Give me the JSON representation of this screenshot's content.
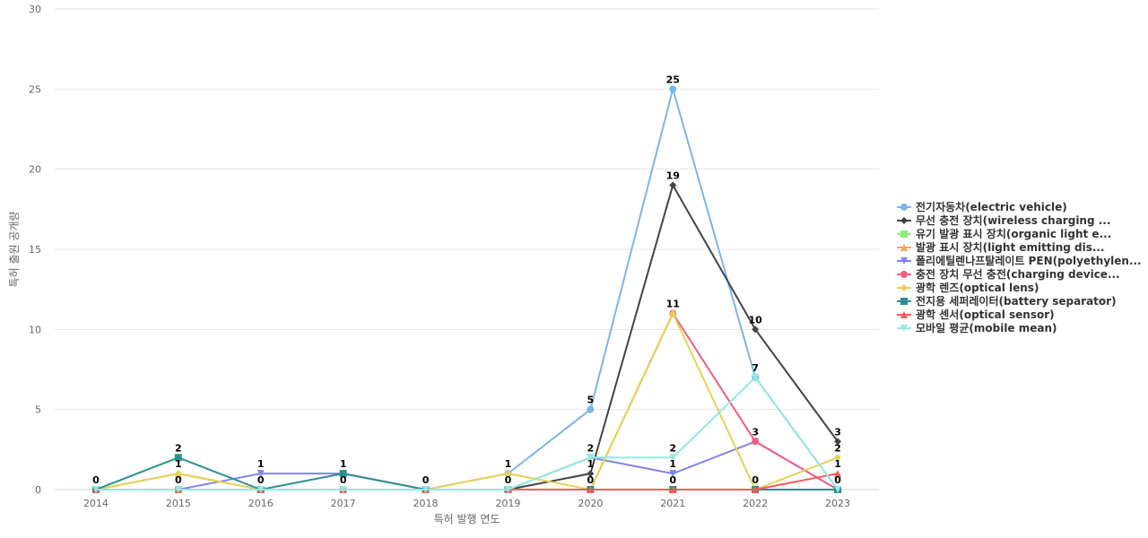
{
  "chart_data": {
    "type": "line",
    "xlabel": "특허 발행 연도",
    "ylabel": "특허 출원 공개량",
    "ylim": [
      0,
      30
    ],
    "yticks": [
      0,
      5,
      10,
      15,
      20,
      25,
      30
    ],
    "categories": [
      "2014",
      "2015",
      "2016",
      "2017",
      "2018",
      "2019",
      "2020",
      "2021",
      "2022",
      "2023"
    ],
    "grid": true,
    "legend_position": "right",
    "series": [
      {
        "name": "전기자동차(electric vehicle)",
        "color": "#7cb5ec",
        "marker": "circle",
        "values": [
          0,
          0,
          0,
          0,
          0,
          1,
          5,
          25,
          7,
          0
        ]
      },
      {
        "name": "무선 충전 장치(wireless charging ...",
        "color": "#434348",
        "marker": "diamond",
        "values": [
          0,
          0,
          0,
          0,
          0,
          0,
          1,
          19,
          10,
          3
        ]
      },
      {
        "name": "유기 발광 표시 장치(organic light e...",
        "color": "#90ed7d",
        "marker": "square",
        "values": [
          0,
          0,
          0,
          0,
          0,
          0,
          0,
          0,
          0,
          0
        ]
      },
      {
        "name": "발광 표시 장치(light emitting dis...",
        "color": "#f7a35c",
        "marker": "triangle",
        "values": [
          0,
          1,
          0,
          0,
          0,
          0,
          0,
          0,
          0,
          0
        ]
      },
      {
        "name": "폴리에틸렌나프탈레이트 PEN(polyethylen...",
        "color": "#8085e9",
        "marker": "triangle-down",
        "values": [
          0,
          0,
          1,
          1,
          0,
          0,
          2,
          1,
          3,
          0
        ]
      },
      {
        "name": "충전 장치 무선 충전(charging device...",
        "color": "#f15c80",
        "marker": "circle",
        "values": [
          0,
          0,
          0,
          0,
          0,
          0,
          0,
          11,
          3,
          0
        ]
      },
      {
        "name": "광학 렌즈(optical lens)",
        "color": "#e4d354",
        "marker": "diamond",
        "values": [
          0,
          1,
          0,
          0,
          0,
          1,
          0,
          11,
          0,
          2
        ]
      },
      {
        "name": "전지용 세퍼레이터(battery separator)",
        "color": "#2b908f",
        "marker": "square",
        "values": [
          0,
          2,
          0,
          1,
          0,
          0,
          0,
          0,
          0,
          0
        ]
      },
      {
        "name": "광학 센서(optical sensor)",
        "color": "#f45b5b",
        "marker": "triangle",
        "values": [
          0,
          0,
          0,
          0,
          0,
          0,
          0,
          0,
          0,
          1
        ]
      },
      {
        "name": "모바일 평균(mobile mean)",
        "color": "#91e8e1",
        "marker": "triangle-down",
        "values": [
          0,
          0,
          0,
          0,
          0,
          0,
          2,
          2,
          7,
          0
        ]
      }
    ],
    "data_labels": [
      {
        "series": 7,
        "x": "2014",
        "text": "0"
      },
      {
        "series": 7,
        "x": "2015",
        "text": "2"
      },
      {
        "series": 6,
        "x": "2015",
        "text": "1"
      },
      {
        "series": 0,
        "x": "2015",
        "text": "0"
      },
      {
        "series": 4,
        "x": "2016",
        "text": "1"
      },
      {
        "series": 0,
        "x": "2016",
        "text": "0"
      },
      {
        "series": 7,
        "x": "2017",
        "text": "1"
      },
      {
        "series": 0,
        "x": "2017",
        "text": "0"
      },
      {
        "series": 0,
        "x": "2018",
        "text": "0"
      },
      {
        "series": 6,
        "x": "2019",
        "text": "1"
      },
      {
        "series": 1,
        "x": "2019",
        "text": "0"
      },
      {
        "series": 0,
        "x": "2020",
        "text": "5"
      },
      {
        "series": 4,
        "x": "2020",
        "text": "2"
      },
      {
        "series": 1,
        "x": "2020",
        "text": "1"
      },
      {
        "series": 5,
        "x": "2020",
        "text": "0"
      },
      {
        "series": 0,
        "x": "2021",
        "text": "25"
      },
      {
        "series": 1,
        "x": "2021",
        "text": "19"
      },
      {
        "series": 5,
        "x": "2021",
        "text": "11"
      },
      {
        "series": 9,
        "x": "2021",
        "text": "2"
      },
      {
        "series": 4,
        "x": "2021",
        "text": "1"
      },
      {
        "series": 2,
        "x": "2021",
        "text": "0"
      },
      {
        "series": 1,
        "x": "2022",
        "text": "10"
      },
      {
        "series": 0,
        "x": "2022",
        "text": "7"
      },
      {
        "series": 5,
        "x": "2022",
        "text": "3"
      },
      {
        "series": 6,
        "x": "2022",
        "text": "0"
      },
      {
        "series": 1,
        "x": "2023",
        "text": "3"
      },
      {
        "series": 6,
        "x": "2023",
        "text": "2"
      },
      {
        "series": 8,
        "x": "2023",
        "text": "1"
      },
      {
        "series": 0,
        "x": "2023",
        "text": "0"
      }
    ]
  }
}
